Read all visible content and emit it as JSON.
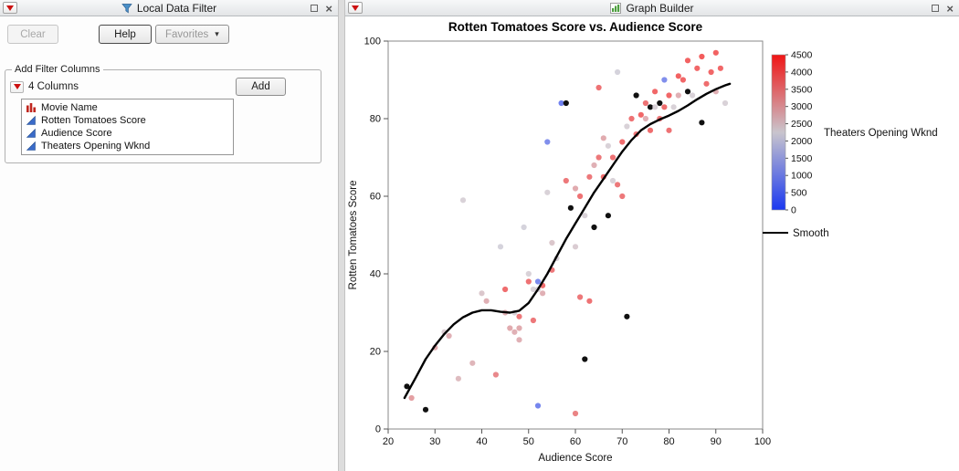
{
  "left_panel": {
    "title": "Local Data Filter",
    "buttons": {
      "clear": "Clear",
      "help": "Help",
      "favorites": "Favorites"
    },
    "group_title": "Add Filter Columns",
    "columns_summary": "4 Columns",
    "add_button": "Add",
    "columns": [
      {
        "name": "Movie Name",
        "type": "nominal"
      },
      {
        "name": "Rotten Tomatoes Score",
        "type": "continuous"
      },
      {
        "name": "Audience Score",
        "type": "continuous"
      },
      {
        "name": "Theaters Opening Wknd",
        "type": "continuous"
      }
    ]
  },
  "right_panel": {
    "title": "Graph Builder"
  },
  "chart_data": {
    "type": "scatter",
    "title": "Rotten Tomatoes Score vs. Audience Score",
    "xlabel": "Audience Score",
    "ylabel": "Rotten Tomatoes Score",
    "xlim": [
      20,
      100
    ],
    "ylim": [
      0,
      100
    ],
    "xticks": [
      20,
      30,
      40,
      50,
      60,
      70,
      80,
      90,
      100
    ],
    "yticks": [
      0,
      20,
      40,
      60,
      80,
      100
    ],
    "grid": false,
    "color_legend": {
      "label": "Theaters Opening Wknd",
      "min": 0,
      "max": 4500,
      "ticks": [
        4500,
        4000,
        3500,
        3000,
        2500,
        2000,
        1500,
        1000,
        500,
        0
      ],
      "min_color": "#1a38f0",
      "mid_color": "#c9c5cd",
      "max_color": "#f01515"
    },
    "smooth_label": "Smooth",
    "point_color_note": "third value = Theaters Opening Wknd; null = uncolored (black) marker",
    "points": [
      [
        24,
        11,
        null
      ],
      [
        25,
        8,
        3200
      ],
      [
        28,
        5,
        null
      ],
      [
        30,
        21,
        3000
      ],
      [
        32,
        25,
        2400
      ],
      [
        33,
        24,
        2900
      ],
      [
        35,
        13,
        2700
      ],
      [
        36,
        59,
        2300
      ],
      [
        38,
        17,
        2800
      ],
      [
        40,
        35,
        2500
      ],
      [
        41,
        33,
        2900
      ],
      [
        43,
        14,
        3600
      ],
      [
        44,
        47,
        2200
      ],
      [
        45,
        36,
        4100
      ],
      [
        45,
        30,
        2900
      ],
      [
        46,
        26,
        3000
      ],
      [
        47,
        30,
        2300
      ],
      [
        47,
        25,
        2900
      ],
      [
        48,
        29,
        3900
      ],
      [
        48,
        26,
        3000
      ],
      [
        48,
        23,
        2900
      ],
      [
        49,
        52,
        2200
      ],
      [
        50,
        40,
        2300
      ],
      [
        50,
        38,
        4000
      ],
      [
        51,
        36,
        2300
      ],
      [
        51,
        28,
        3900
      ],
      [
        52,
        38,
        600
      ],
      [
        52,
        36,
        2300
      ],
      [
        52,
        6,
        500
      ],
      [
        53,
        37,
        4100
      ],
      [
        53,
        35,
        2900
      ],
      [
        54,
        74,
        700
      ],
      [
        54,
        61,
        2300
      ],
      [
        55,
        48,
        2500
      ],
      [
        55,
        41,
        3900
      ],
      [
        56,
        44,
        2300
      ],
      [
        57,
        84,
        400
      ],
      [
        58,
        84,
        null
      ],
      [
        58,
        64,
        3900
      ],
      [
        59,
        57,
        null
      ],
      [
        60,
        62,
        3000
      ],
      [
        60,
        47,
        2400
      ],
      [
        60,
        4,
        3700
      ],
      [
        61,
        60,
        4000
      ],
      [
        61,
        34,
        3900
      ],
      [
        62,
        55,
        2300
      ],
      [
        62,
        18,
        null
      ],
      [
        63,
        65,
        3900
      ],
      [
        63,
        33,
        4000
      ],
      [
        64,
        68,
        2900
      ],
      [
        64,
        52,
        null
      ],
      [
        65,
        88,
        4000
      ],
      [
        65,
        70,
        3900
      ],
      [
        66,
        75,
        3000
      ],
      [
        66,
        65,
        4100
      ],
      [
        67,
        73,
        2300
      ],
      [
        67,
        55,
        null
      ],
      [
        68,
        70,
        4000
      ],
      [
        68,
        64,
        2300
      ],
      [
        69,
        92,
        2200
      ],
      [
        69,
        63,
        3900
      ],
      [
        70,
        74,
        4100
      ],
      [
        70,
        60,
        3900
      ],
      [
        71,
        78,
        2300
      ],
      [
        71,
        29,
        null
      ],
      [
        72,
        80,
        4000
      ],
      [
        73,
        86,
        null
      ],
      [
        73,
        76,
        3900
      ],
      [
        74,
        81,
        4200
      ],
      [
        75,
        84,
        4000
      ],
      [
        75,
        80,
        2900
      ],
      [
        76,
        83,
        null
      ],
      [
        76,
        77,
        4100
      ],
      [
        77,
        87,
        4200
      ],
      [
        77,
        83,
        2300
      ],
      [
        78,
        84,
        null
      ],
      [
        78,
        80,
        3900
      ],
      [
        79,
        90,
        700
      ],
      [
        79,
        83,
        4100
      ],
      [
        80,
        86,
        4200
      ],
      [
        80,
        77,
        4000
      ],
      [
        81,
        83,
        2300
      ],
      [
        82,
        91,
        4300
      ],
      [
        82,
        86,
        2900
      ],
      [
        83,
        90,
        4200
      ],
      [
        84,
        95,
        4300
      ],
      [
        84,
        87,
        null
      ],
      [
        85,
        86,
        2300
      ],
      [
        86,
        93,
        4200
      ],
      [
        87,
        96,
        4400
      ],
      [
        87,
        79,
        null
      ],
      [
        88,
        89,
        4100
      ],
      [
        89,
        92,
        4200
      ],
      [
        90,
        97,
        4300
      ],
      [
        90,
        87,
        2900
      ],
      [
        91,
        93,
        4200
      ],
      [
        92,
        84,
        2300
      ]
    ],
    "smooth_line": [
      [
        23.5,
        8
      ],
      [
        26,
        13.5
      ],
      [
        28,
        18
      ],
      [
        30,
        21.5
      ],
      [
        32,
        24.5
      ],
      [
        34,
        27
      ],
      [
        36,
        28.8
      ],
      [
        38,
        30
      ],
      [
        40,
        30.6
      ],
      [
        42,
        30.6
      ],
      [
        44,
        30.2
      ],
      [
        46,
        30
      ],
      [
        48,
        30.5
      ],
      [
        50,
        32.5
      ],
      [
        52,
        36
      ],
      [
        54,
        40
      ],
      [
        56,
        44.5
      ],
      [
        58,
        49
      ],
      [
        60,
        53
      ],
      [
        62,
        57
      ],
      [
        64,
        61
      ],
      [
        66,
        64.5
      ],
      [
        68,
        68
      ],
      [
        70,
        71.5
      ],
      [
        72,
        74.5
      ],
      [
        74,
        77
      ],
      [
        76,
        78.6
      ],
      [
        78,
        79.8
      ],
      [
        80,
        80.8
      ],
      [
        82,
        82
      ],
      [
        84,
        83.4
      ],
      [
        86,
        85
      ],
      [
        88,
        86.4
      ],
      [
        90,
        87.6
      ],
      [
        92,
        88.6
      ],
      [
        93,
        89
      ]
    ]
  }
}
